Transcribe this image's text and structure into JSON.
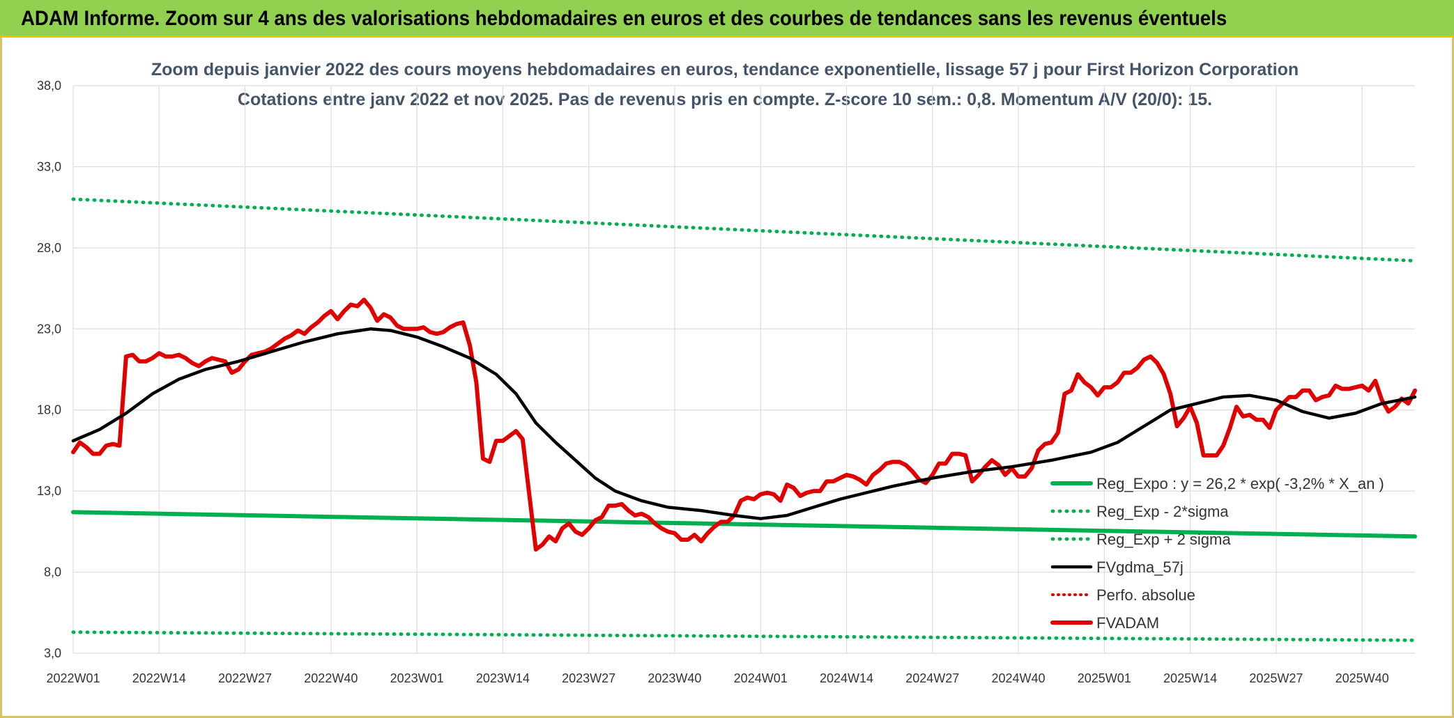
{
  "header": {
    "title": "ADAM Informe. Zoom sur 4 ans des valorisations hebdomadaires en euros et des courbes de tendances sans les revenus éventuels"
  },
  "chart_data": {
    "type": "line",
    "title_line1": "Zoom depuis janvier 2022 des cours moyens hebdomadaires en euros, tendance exponentielle, lissage 57 j pour First Horizon Corporation",
    "title_line2": "Cotations entre janv 2022 et nov 2025. Pas de revenus pris en compte. Z-score 10 sem.: 0,8. Momentum A/V (20/0): 15.",
    "xlabel": "",
    "ylabel": "",
    "ylim": [
      3,
      38
    ],
    "yticks": [
      "3,0",
      "8,0",
      "13,0",
      "18,0",
      "23,0",
      "28,0",
      "33,0",
      "38,0"
    ],
    "xticks": [
      "2022W01",
      "2022W14",
      "2022W27",
      "2022W40",
      "2023W01",
      "2023W14",
      "2023W27",
      "2023W40",
      "2024W01",
      "2024W14",
      "2024W27",
      "2024W40",
      "2025W01",
      "2025W14",
      "2025W27",
      "2025W40"
    ],
    "n_weeks": 204,
    "grid": true,
    "legend_position": "right",
    "colors": {
      "green": "#00b050",
      "black": "#000000",
      "red": "#e00000"
    },
    "series": [
      {
        "name": "Reg_Expo : y = 26,2 * exp( -3,2% *  X_an )",
        "style": "solid-green",
        "points": [
          [
            0,
            11.7
          ],
          [
            203,
            10.2
          ]
        ]
      },
      {
        "name": "Reg_Exp - 2*sigma",
        "style": "dotted-green",
        "points": [
          [
            0,
            4.3
          ],
          [
            203,
            3.8
          ]
        ]
      },
      {
        "name": "Reg_Exp + 2 sigma",
        "style": "dotted-green",
        "points": [
          [
            0,
            31.0
          ],
          [
            203,
            27.2
          ]
        ]
      },
      {
        "name": "FVgdma_57j",
        "style": "solid-black",
        "points": [
          [
            0,
            16.1
          ],
          [
            4,
            16.8
          ],
          [
            8,
            17.8
          ],
          [
            12,
            19.0
          ],
          [
            16,
            19.9
          ],
          [
            20,
            20.5
          ],
          [
            25,
            21.0
          ],
          [
            30,
            21.6
          ],
          [
            35,
            22.2
          ],
          [
            40,
            22.7
          ],
          [
            45,
            23.0
          ],
          [
            48,
            22.9
          ],
          [
            52,
            22.5
          ],
          [
            56,
            21.9
          ],
          [
            60,
            21.2
          ],
          [
            64,
            20.2
          ],
          [
            67,
            19.0
          ],
          [
            70,
            17.2
          ],
          [
            73,
            16.0
          ],
          [
            76,
            14.9
          ],
          [
            79,
            13.8
          ],
          [
            82,
            13.0
          ],
          [
            86,
            12.4
          ],
          [
            90,
            12.0
          ],
          [
            95,
            11.8
          ],
          [
            100,
            11.5
          ],
          [
            104,
            11.3
          ],
          [
            108,
            11.5
          ],
          [
            112,
            12.0
          ],
          [
            116,
            12.5
          ],
          [
            120,
            12.9
          ],
          [
            124,
            13.3
          ],
          [
            130,
            13.8
          ],
          [
            136,
            14.2
          ],
          [
            142,
            14.5
          ],
          [
            148,
            14.9
          ],
          [
            154,
            15.4
          ],
          [
            158,
            16.0
          ],
          [
            162,
            17.0
          ],
          [
            166,
            18.0
          ],
          [
            170,
            18.4
          ],
          [
            174,
            18.8
          ],
          [
            178,
            18.9
          ],
          [
            182,
            18.6
          ],
          [
            186,
            17.9
          ],
          [
            190,
            17.5
          ],
          [
            194,
            17.8
          ],
          [
            198,
            18.4
          ],
          [
            203,
            18.8
          ]
        ]
      },
      {
        "name": "Perfo. absolue",
        "style": "dotted-red",
        "points": []
      },
      {
        "name": "FVADAM",
        "style": "solid-red",
        "points": [
          [
            0,
            15.4
          ],
          [
            1,
            16.0
          ],
          [
            2,
            15.7
          ],
          [
            3,
            15.3
          ],
          [
            4,
            15.3
          ],
          [
            5,
            15.8
          ],
          [
            6,
            15.9
          ],
          [
            7,
            15.8
          ],
          [
            8,
            21.3
          ],
          [
            9,
            21.4
          ],
          [
            10,
            21.0
          ],
          [
            11,
            21.0
          ],
          [
            12,
            21.2
          ],
          [
            13,
            21.5
          ],
          [
            14,
            21.3
          ],
          [
            15,
            21.3
          ],
          [
            16,
            21.4
          ],
          [
            17,
            21.2
          ],
          [
            18,
            20.9
          ],
          [
            19,
            20.7
          ],
          [
            20,
            21.0
          ],
          [
            21,
            21.2
          ],
          [
            22,
            21.1
          ],
          [
            23,
            21.0
          ],
          [
            24,
            20.3
          ],
          [
            25,
            20.5
          ],
          [
            26,
            21.0
          ],
          [
            27,
            21.4
          ],
          [
            28,
            21.5
          ],
          [
            29,
            21.6
          ],
          [
            30,
            21.8
          ],
          [
            31,
            22.1
          ],
          [
            32,
            22.4
          ],
          [
            33,
            22.6
          ],
          [
            34,
            22.9
          ],
          [
            35,
            22.7
          ],
          [
            36,
            23.1
          ],
          [
            37,
            23.4
          ],
          [
            38,
            23.8
          ],
          [
            39,
            24.1
          ],
          [
            40,
            23.6
          ],
          [
            41,
            24.1
          ],
          [
            42,
            24.5
          ],
          [
            43,
            24.4
          ],
          [
            44,
            24.8
          ],
          [
            45,
            24.3
          ],
          [
            46,
            23.5
          ],
          [
            47,
            23.9
          ],
          [
            48,
            23.7
          ],
          [
            49,
            23.2
          ],
          [
            50,
            23.0
          ],
          [
            51,
            23.0
          ],
          [
            52,
            23.0
          ],
          [
            53,
            23.1
          ],
          [
            54,
            22.8
          ],
          [
            55,
            22.7
          ],
          [
            56,
            22.8
          ],
          [
            57,
            23.1
          ],
          [
            58,
            23.3
          ],
          [
            59,
            23.4
          ],
          [
            60,
            22.0
          ],
          [
            61,
            19.7
          ],
          [
            62,
            15.0
          ],
          [
            63,
            14.8
          ],
          [
            64,
            16.1
          ],
          [
            65,
            16.1
          ],
          [
            66,
            16.4
          ],
          [
            67,
            16.7
          ],
          [
            68,
            16.2
          ],
          [
            69,
            12.8
          ],
          [
            70,
            9.4
          ],
          [
            71,
            9.7
          ],
          [
            72,
            10.2
          ],
          [
            73,
            9.9
          ],
          [
            74,
            10.7
          ],
          [
            75,
            11.0
          ],
          [
            76,
            10.5
          ],
          [
            77,
            10.3
          ],
          [
            78,
            10.7
          ],
          [
            79,
            11.2
          ],
          [
            80,
            11.4
          ],
          [
            81,
            12.1
          ],
          [
            82,
            12.1
          ],
          [
            83,
            12.2
          ],
          [
            84,
            11.8
          ],
          [
            85,
            11.5
          ],
          [
            86,
            11.6
          ],
          [
            87,
            11.4
          ],
          [
            88,
            11.0
          ],
          [
            89,
            10.7
          ],
          [
            90,
            10.5
          ],
          [
            91,
            10.4
          ],
          [
            92,
            10.0
          ],
          [
            93,
            10.0
          ],
          [
            94,
            10.3
          ],
          [
            95,
            9.9
          ],
          [
            96,
            10.4
          ],
          [
            97,
            10.8
          ],
          [
            98,
            11.1
          ],
          [
            99,
            11.1
          ],
          [
            100,
            11.5
          ],
          [
            101,
            12.4
          ],
          [
            102,
            12.6
          ],
          [
            103,
            12.5
          ],
          [
            104,
            12.8
          ],
          [
            105,
            12.9
          ],
          [
            106,
            12.8
          ],
          [
            107,
            12.4
          ],
          [
            108,
            13.4
          ],
          [
            109,
            13.2
          ],
          [
            110,
            12.7
          ],
          [
            111,
            12.9
          ],
          [
            112,
            13.0
          ],
          [
            113,
            13.0
          ],
          [
            114,
            13.6
          ],
          [
            115,
            13.6
          ],
          [
            116,
            13.8
          ],
          [
            117,
            14.0
          ],
          [
            118,
            13.9
          ],
          [
            119,
            13.7
          ],
          [
            120,
            13.4
          ],
          [
            121,
            14.0
          ],
          [
            122,
            14.3
          ],
          [
            123,
            14.7
          ],
          [
            124,
            14.8
          ],
          [
            125,
            14.8
          ],
          [
            126,
            14.6
          ],
          [
            127,
            14.2
          ],
          [
            128,
            13.7
          ],
          [
            129,
            13.5
          ],
          [
            130,
            14.0
          ],
          [
            131,
            14.7
          ],
          [
            132,
            14.7
          ],
          [
            133,
            15.3
          ],
          [
            134,
            15.3
          ],
          [
            135,
            15.2
          ],
          [
            136,
            13.6
          ],
          [
            137,
            14.0
          ],
          [
            138,
            14.5
          ],
          [
            139,
            14.9
          ],
          [
            140,
            14.6
          ],
          [
            141,
            14.0
          ],
          [
            142,
            14.4
          ],
          [
            143,
            13.9
          ],
          [
            144,
            13.9
          ],
          [
            145,
            14.4
          ],
          [
            146,
            15.5
          ],
          [
            147,
            15.9
          ],
          [
            148,
            16.0
          ],
          [
            149,
            16.6
          ],
          [
            150,
            19.0
          ],
          [
            151,
            19.2
          ],
          [
            152,
            20.2
          ],
          [
            153,
            19.7
          ],
          [
            154,
            19.4
          ],
          [
            155,
            18.9
          ],
          [
            156,
            19.4
          ],
          [
            157,
            19.4
          ],
          [
            158,
            19.7
          ],
          [
            159,
            20.3
          ],
          [
            160,
            20.3
          ],
          [
            161,
            20.6
          ],
          [
            162,
            21.1
          ],
          [
            163,
            21.3
          ],
          [
            164,
            20.9
          ],
          [
            165,
            20.2
          ],
          [
            166,
            19.0
          ],
          [
            167,
            17.0
          ],
          [
            168,
            17.5
          ],
          [
            169,
            18.2
          ],
          [
            170,
            17.2
          ],
          [
            171,
            15.2
          ],
          [
            172,
            15.2
          ],
          [
            173,
            15.2
          ],
          [
            174,
            15.8
          ],
          [
            175,
            16.9
          ],
          [
            176,
            18.2
          ],
          [
            177,
            17.6
          ],
          [
            178,
            17.7
          ],
          [
            179,
            17.4
          ],
          [
            180,
            17.4
          ],
          [
            181,
            16.9
          ],
          [
            182,
            18.0
          ],
          [
            183,
            18.4
          ],
          [
            184,
            18.8
          ],
          [
            185,
            18.8
          ],
          [
            186,
            19.2
          ],
          [
            187,
            19.2
          ],
          [
            188,
            18.6
          ],
          [
            189,
            18.8
          ],
          [
            190,
            18.9
          ],
          [
            191,
            19.5
          ],
          [
            192,
            19.3
          ],
          [
            193,
            19.3
          ],
          [
            194,
            19.4
          ],
          [
            195,
            19.5
          ],
          [
            196,
            19.2
          ],
          [
            197,
            19.8
          ],
          [
            198,
            18.6
          ],
          [
            199,
            17.9
          ],
          [
            200,
            18.2
          ],
          [
            201,
            18.7
          ],
          [
            202,
            18.4
          ],
          [
            203,
            19.2
          ]
        ]
      }
    ]
  }
}
